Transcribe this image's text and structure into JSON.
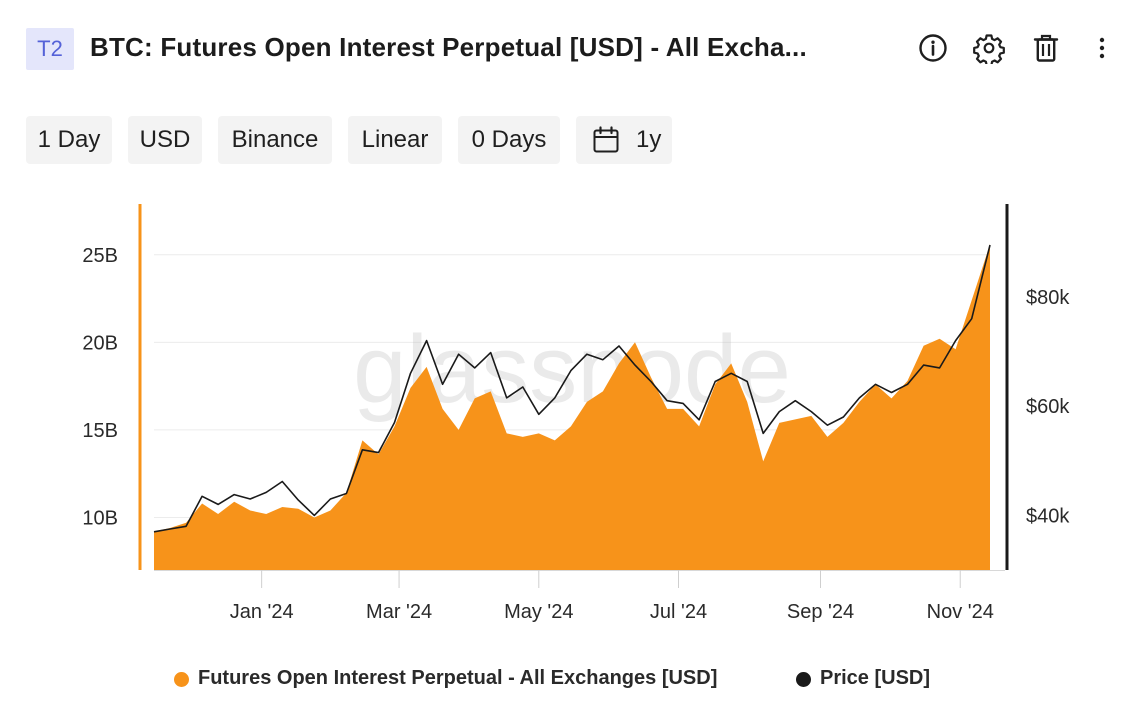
{
  "header": {
    "tag": "T2",
    "title": "BTC: Futures Open Interest Perpetual [USD] - All Excha...",
    "icons": [
      "info-icon",
      "gear-icon",
      "trash-icon",
      "more-vertical-icon"
    ]
  },
  "controls": {
    "resolution": "1 Day",
    "currency": "USD",
    "exchange": "Binance",
    "scale": "Linear",
    "offset": "0 Days",
    "range": "1y",
    "range_icon": "calendar-icon"
  },
  "colors": {
    "area": "#f7931a",
    "price_line": "#1a1a1a",
    "left_axis": "#f7931a",
    "right_axis": "#1a1a1a",
    "grid": "#ececec",
    "tag_bg": "#e4e6fb",
    "tag_text": "#5562d8"
  },
  "chart_data": {
    "type": "area",
    "watermark": "glassnode",
    "x_ticks": [
      "Jan '24",
      "Mar '24",
      "May '24",
      "Jul '24",
      "Sep '24",
      "Nov '24"
    ],
    "x_tick_dates": [
      "2024-01-01",
      "2024-03-01",
      "2024-05-01",
      "2024-07-01",
      "2024-09-01",
      "2024-11-01"
    ],
    "xlim": [
      "2023-11-15",
      "2024-11-14"
    ],
    "y_left": {
      "ticks": [
        "10B",
        "15B",
        "20B",
        "25B"
      ],
      "tick_values": [
        10,
        15,
        20,
        25
      ],
      "unit": "B USD",
      "range": [
        7,
        27.9
      ]
    },
    "y_right": {
      "ticks": [
        "$40k",
        "$60k",
        "$80k"
      ],
      "tick_values": [
        40,
        60,
        80
      ],
      "unit": "k USD",
      "range": [
        30,
        97
      ]
    },
    "grid": "horizontal",
    "legend_position": "bottom-center",
    "series": [
      {
        "name": "Futures Open Interest Perpetual - All Exchanges [USD]",
        "axis": "left",
        "style": "area",
        "dates": [
          "2023-11-15",
          "2023-11-22",
          "2023-11-29",
          "2023-12-06",
          "2023-12-13",
          "2023-12-20",
          "2023-12-27",
          "2024-01-03",
          "2024-01-10",
          "2024-01-17",
          "2024-01-24",
          "2024-01-31",
          "2024-02-07",
          "2024-02-14",
          "2024-02-21",
          "2024-02-28",
          "2024-03-06",
          "2024-03-13",
          "2024-03-20",
          "2024-03-27",
          "2024-04-03",
          "2024-04-10",
          "2024-04-17",
          "2024-04-24",
          "2024-05-01",
          "2024-05-08",
          "2024-05-15",
          "2024-05-22",
          "2024-05-29",
          "2024-06-05",
          "2024-06-12",
          "2024-06-19",
          "2024-06-26",
          "2024-07-03",
          "2024-07-10",
          "2024-07-17",
          "2024-07-24",
          "2024-07-31",
          "2024-08-07",
          "2024-08-14",
          "2024-08-21",
          "2024-08-28",
          "2024-09-04",
          "2024-09-11",
          "2024-09-18",
          "2024-09-25",
          "2024-10-02",
          "2024-10-09",
          "2024-10-16",
          "2024-10-23",
          "2024-10-30",
          "2024-11-06",
          "2024-11-14"
        ],
        "values": [
          9.2,
          9.4,
          9.7,
          10.8,
          10.2,
          10.9,
          10.4,
          10.2,
          10.6,
          10.5,
          10.0,
          10.4,
          11.4,
          14.4,
          13.6,
          15.2,
          17.4,
          18.6,
          16.2,
          15.0,
          16.8,
          17.2,
          14.8,
          14.6,
          14.8,
          14.4,
          15.2,
          16.6,
          17.2,
          18.8,
          20.0,
          18.0,
          16.2,
          16.2,
          15.2,
          17.6,
          18.8,
          16.6,
          13.2,
          15.4,
          15.6,
          15.8,
          14.6,
          15.4,
          16.6,
          17.6,
          16.8,
          17.8,
          19.8,
          20.2,
          19.6,
          22.4,
          25.6
        ]
      },
      {
        "name": "Price [USD]",
        "axis": "right",
        "style": "line",
        "dates": [
          "2023-11-15",
          "2023-11-22",
          "2023-11-29",
          "2023-12-06",
          "2023-12-13",
          "2023-12-20",
          "2023-12-27",
          "2024-01-03",
          "2024-01-10",
          "2024-01-17",
          "2024-01-24",
          "2024-01-31",
          "2024-02-07",
          "2024-02-14",
          "2024-02-21",
          "2024-02-28",
          "2024-03-06",
          "2024-03-13",
          "2024-03-20",
          "2024-03-27",
          "2024-04-03",
          "2024-04-10",
          "2024-04-17",
          "2024-04-24",
          "2024-05-01",
          "2024-05-08",
          "2024-05-15",
          "2024-05-22",
          "2024-05-29",
          "2024-06-05",
          "2024-06-12",
          "2024-06-19",
          "2024-06-26",
          "2024-07-03",
          "2024-07-10",
          "2024-07-17",
          "2024-07-24",
          "2024-07-31",
          "2024-08-07",
          "2024-08-14",
          "2024-08-21",
          "2024-08-28",
          "2024-09-04",
          "2024-09-11",
          "2024-09-18",
          "2024-09-25",
          "2024-10-02",
          "2024-10-09",
          "2024-10-16",
          "2024-10-23",
          "2024-10-30",
          "2024-11-06",
          "2024-11-14"
        ],
        "values": [
          37,
          37.5,
          38,
          43.5,
          42,
          43.8,
          43.0,
          44.2,
          46.2,
          42.8,
          40,
          43,
          44,
          52,
          51.5,
          57,
          66,
          72,
          64,
          69.5,
          67,
          69.8,
          61.5,
          63.5,
          58.5,
          61.5,
          66.5,
          69.5,
          68.5,
          71,
          67.5,
          64.5,
          61,
          60.5,
          57.5,
          64.5,
          66.0,
          64.5,
          55,
          59,
          61,
          59,
          56.5,
          58,
          61.5,
          64,
          62.5,
          64,
          67.5,
          67,
          72,
          76,
          89.5
        ]
      }
    ]
  },
  "legend": [
    {
      "label": "Futures Open Interest Perpetual - All Exchanges [USD]",
      "color": "#f7931a"
    },
    {
      "label": "Price [USD]",
      "color": "#1a1a1a"
    }
  ]
}
